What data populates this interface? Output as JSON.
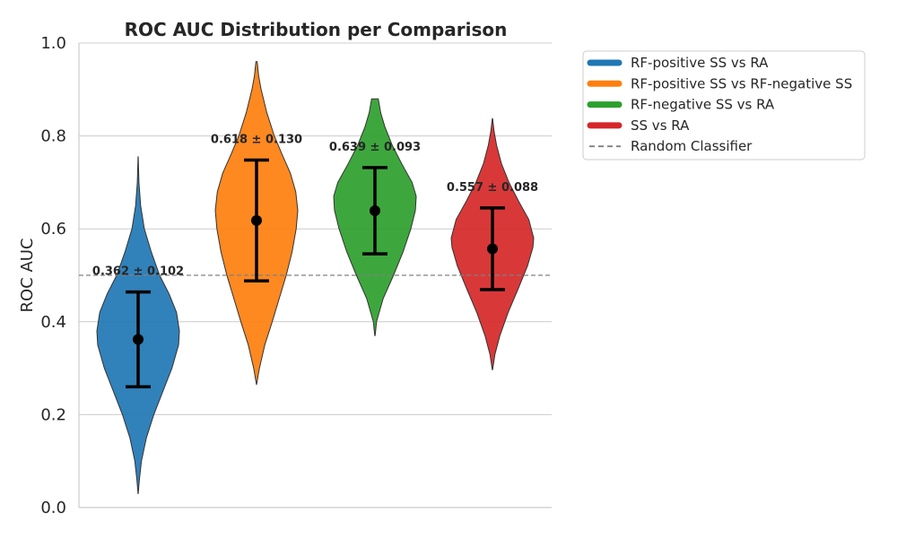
{
  "chart_data": {
    "type": "violin",
    "title": "ROC AUC Distribution per Comparison",
    "xlabel": "",
    "ylabel": "ROC AUC",
    "ylim": [
      0,
      1
    ],
    "yticks": [
      "0.0",
      "0.2",
      "0.4",
      "0.6",
      "0.8",
      "1.0"
    ],
    "grid": "horizontal",
    "legend_position": "outside-top-right",
    "reference_line": {
      "name": "Random Classifier",
      "y": 0.5,
      "style": "dashed",
      "color": "#808080"
    },
    "series": [
      {
        "name": "RF-positive SS vs RA",
        "color": "#1f77b4",
        "mean": 0.362,
        "std": 0.102,
        "min": 0.03,
        "max": 0.755,
        "annotation": "0.362 ± 0.102",
        "density": [
          [
            0.03,
            0.002
          ],
          [
            0.06,
            0.03
          ],
          [
            0.1,
            0.08
          ],
          [
            0.15,
            0.2
          ],
          [
            0.2,
            0.38
          ],
          [
            0.25,
            0.6
          ],
          [
            0.3,
            0.82
          ],
          [
            0.35,
            0.98
          ],
          [
            0.38,
            1.0
          ],
          [
            0.42,
            0.93
          ],
          [
            0.46,
            0.75
          ],
          [
            0.5,
            0.52
          ],
          [
            0.55,
            0.32
          ],
          [
            0.6,
            0.15
          ],
          [
            0.65,
            0.06
          ],
          [
            0.7,
            0.02
          ],
          [
            0.755,
            0.002
          ]
        ]
      },
      {
        "name": "RF-positive SS vs RF-negative SS",
        "color": "#ff7f0e",
        "mean": 0.618,
        "std": 0.13,
        "min": 0.265,
        "max": 0.96,
        "annotation": "0.618 ± 0.130",
        "density": [
          [
            0.265,
            0.003
          ],
          [
            0.3,
            0.07
          ],
          [
            0.35,
            0.2
          ],
          [
            0.4,
            0.38
          ],
          [
            0.45,
            0.55
          ],
          [
            0.5,
            0.72
          ],
          [
            0.55,
            0.86
          ],
          [
            0.6,
            0.96
          ],
          [
            0.64,
            1.0
          ],
          [
            0.68,
            0.95
          ],
          [
            0.72,
            0.82
          ],
          [
            0.76,
            0.62
          ],
          [
            0.8,
            0.43
          ],
          [
            0.85,
            0.25
          ],
          [
            0.9,
            0.11
          ],
          [
            0.93,
            0.05
          ],
          [
            0.96,
            0.015
          ]
        ]
      },
      {
        "name": "RF-negative SS vs RA",
        "color": "#2ca02c",
        "mean": 0.639,
        "std": 0.093,
        "min": 0.37,
        "max": 0.88,
        "annotation": "0.639 ± 0.093",
        "density": [
          [
            0.37,
            0.005
          ],
          [
            0.4,
            0.04
          ],
          [
            0.45,
            0.2
          ],
          [
            0.5,
            0.45
          ],
          [
            0.55,
            0.68
          ],
          [
            0.6,
            0.87
          ],
          [
            0.64,
            0.98
          ],
          [
            0.67,
            1.0
          ],
          [
            0.7,
            0.9
          ],
          [
            0.74,
            0.65
          ],
          [
            0.78,
            0.42
          ],
          [
            0.82,
            0.24
          ],
          [
            0.85,
            0.14
          ],
          [
            0.88,
            0.08
          ]
        ]
      },
      {
        "name": "SS vs RA",
        "color": "#d62728",
        "mean": 0.557,
        "std": 0.088,
        "min": 0.297,
        "max": 0.837,
        "annotation": "0.557 ± 0.088",
        "density": [
          [
            0.297,
            0.005
          ],
          [
            0.33,
            0.06
          ],
          [
            0.37,
            0.18
          ],
          [
            0.42,
            0.38
          ],
          [
            0.47,
            0.62
          ],
          [
            0.52,
            0.85
          ],
          [
            0.56,
            0.98
          ],
          [
            0.58,
            1.0
          ],
          [
            0.62,
            0.88
          ],
          [
            0.66,
            0.63
          ],
          [
            0.7,
            0.4
          ],
          [
            0.74,
            0.22
          ],
          [
            0.78,
            0.1
          ],
          [
            0.81,
            0.04
          ],
          [
            0.837,
            0.005
          ]
        ]
      }
    ]
  },
  "legend": {
    "items": [
      {
        "label": "RF-positive SS vs RA",
        "color": "#1f77b4",
        "kind": "line"
      },
      {
        "label": "RF-positive SS vs RF-negative SS",
        "color": "#ff7f0e",
        "kind": "line"
      },
      {
        "label": "RF-negative SS vs RA",
        "color": "#2ca02c",
        "kind": "line"
      },
      {
        "label": "SS vs RA",
        "color": "#d62728",
        "kind": "line"
      },
      {
        "label": "Random Classifier",
        "color": "#808080",
        "kind": "dashed"
      }
    ]
  }
}
